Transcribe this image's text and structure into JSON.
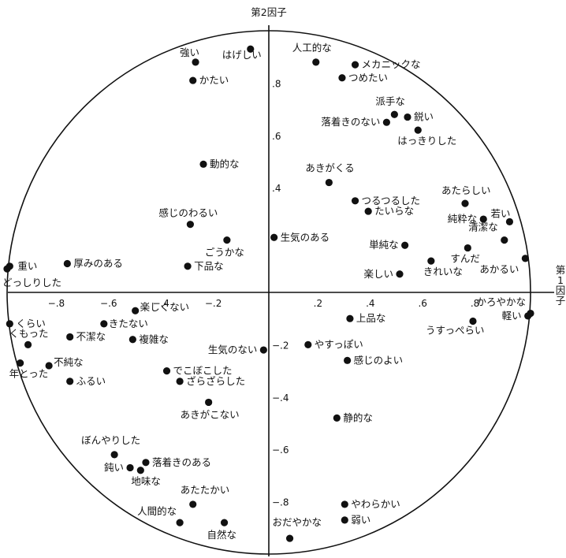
{
  "chart_data": {
    "type": "scatter",
    "title": "",
    "xlabel": "第1因子",
    "ylabel": "第2因子",
    "x_label_lines": [
      "第",
      "1",
      "因",
      "子"
    ],
    "xlim": [
      -1,
      1
    ],
    "ylim": [
      -1,
      1
    ],
    "grid": false,
    "unit_circle": true,
    "x_ticks": [
      {
        "v": -0.8,
        "label": "−.8"
      },
      {
        "v": -0.6,
        "label": "−.6"
      },
      {
        "v": -0.4,
        "label": "−.4"
      },
      {
        "v": -0.2,
        "label": "−.2"
      },
      {
        "v": 0.2,
        "label": ".2"
      },
      {
        "v": 0.4,
        "label": ".4"
      },
      {
        "v": 0.6,
        "label": ".6"
      },
      {
        "v": 0.8,
        "label": ".8"
      }
    ],
    "y_ticks": [
      {
        "v": 0.8,
        "label": ".8"
      },
      {
        "v": 0.6,
        "label": ".6"
      },
      {
        "v": 0.4,
        "label": ".4"
      },
      {
        "v": -0.2,
        "label": "−.2"
      },
      {
        "v": -0.4,
        "label": "−.4"
      },
      {
        "v": -0.6,
        "label": "−.6"
      },
      {
        "v": -0.8,
        "label": "−.8"
      }
    ],
    "points": [
      {
        "label": "強い",
        "x": -0.28,
        "y": 0.88
      },
      {
        "label": "はげしい",
        "x": -0.07,
        "y": 0.93
      },
      {
        "label": "かたい",
        "x": -0.29,
        "y": 0.81
      },
      {
        "label": "人工的な",
        "x": 0.18,
        "y": 0.88
      },
      {
        "label": "メカニックな",
        "x": 0.33,
        "y": 0.87
      },
      {
        "label": "つめたい",
        "x": 0.28,
        "y": 0.82
      },
      {
        "label": "派手な",
        "x": 0.48,
        "y": 0.68
      },
      {
        "label": "鋭い",
        "x": 0.53,
        "y": 0.67
      },
      {
        "label": "落着きのない",
        "x": 0.45,
        "y": 0.65
      },
      {
        "label": "はっきりした",
        "x": 0.57,
        "y": 0.62
      },
      {
        "label": "動的な",
        "x": -0.25,
        "y": 0.49
      },
      {
        "label": "あきがくる",
        "x": 0.23,
        "y": 0.42
      },
      {
        "label": "つるつるした",
        "x": 0.33,
        "y": 0.35
      },
      {
        "label": "あたらしい",
        "x": 0.75,
        "y": 0.34
      },
      {
        "label": "たいらな",
        "x": 0.38,
        "y": 0.31
      },
      {
        "label": "純粋な",
        "x": 0.82,
        "y": 0.28
      },
      {
        "label": "若い",
        "x": 0.92,
        "y": 0.27
      },
      {
        "label": "感じのわるい",
        "x": -0.3,
        "y": 0.26
      },
      {
        "label": "生気のある",
        "x": 0.02,
        "y": 0.21
      },
      {
        "label": "ごうかな",
        "x": -0.16,
        "y": 0.2
      },
      {
        "label": "清潔な",
        "x": 0.9,
        "y": 0.2
      },
      {
        "label": "単純な",
        "x": 0.52,
        "y": 0.18
      },
      {
        "label": "すんだ",
        "x": 0.76,
        "y": 0.17
      },
      {
        "label": "重い",
        "x": -0.99,
        "y": 0.1
      },
      {
        "label": "厚みのある",
        "x": -0.77,
        "y": 0.11
      },
      {
        "label": "下品な",
        "x": -0.31,
        "y": 0.1
      },
      {
        "label": "きれいな",
        "x": 0.62,
        "y": 0.12
      },
      {
        "label": "あかるい",
        "x": 0.98,
        "y": 0.13
      },
      {
        "label": "どっしりした",
        "x": -1.0,
        "y": 0.09
      },
      {
        "label": "楽しい",
        "x": 0.5,
        "y": 0.07
      },
      {
        "label": "かろやかな",
        "x": 1.0,
        "y": -0.08
      },
      {
        "label": "軽い",
        "x": 0.99,
        "y": -0.09
      },
      {
        "label": "うすっぺらい",
        "x": 0.78,
        "y": -0.11
      },
      {
        "label": "上品な",
        "x": 0.31,
        "y": -0.1
      },
      {
        "label": "楽しくない",
        "x": -0.51,
        "y": -0.07
      },
      {
        "label": "くらい",
        "x": -0.99,
        "y": -0.12
      },
      {
        "label": "きたない",
        "x": -0.63,
        "y": -0.12
      },
      {
        "label": "くもった",
        "x": -0.92,
        "y": -0.2
      },
      {
        "label": "不潔な",
        "x": -0.76,
        "y": -0.17
      },
      {
        "label": "複雑な",
        "x": -0.52,
        "y": -0.18
      },
      {
        "label": "生気のない",
        "x": -0.02,
        "y": -0.22
      },
      {
        "label": "やすっぽい",
        "x": 0.15,
        "y": -0.2
      },
      {
        "label": "感じのよい",
        "x": 0.3,
        "y": -0.26
      },
      {
        "label": "不純な",
        "x": -0.84,
        "y": -0.28
      },
      {
        "label": "年とった",
        "x": -0.95,
        "y": -0.27
      },
      {
        "label": "でこぼこした",
        "x": -0.39,
        "y": -0.3
      },
      {
        "label": "ふるい",
        "x": -0.76,
        "y": -0.34
      },
      {
        "label": "ざらざらした",
        "x": -0.34,
        "y": -0.34
      },
      {
        "label": "あきがこない",
        "x": -0.23,
        "y": -0.42
      },
      {
        "label": "静的な",
        "x": 0.26,
        "y": -0.48
      },
      {
        "label": "ぼんやりした",
        "x": -0.59,
        "y": -0.62
      },
      {
        "label": "落着きのある",
        "x": -0.47,
        "y": -0.65
      },
      {
        "label": "鈍い",
        "x": -0.53,
        "y": -0.67
      },
      {
        "label": "地味な",
        "x": -0.49,
        "y": -0.68
      },
      {
        "label": "あたたかい",
        "x": -0.29,
        "y": -0.81
      },
      {
        "label": "やわらかい",
        "x": 0.29,
        "y": -0.81
      },
      {
        "label": "人間的な",
        "x": -0.34,
        "y": -0.88
      },
      {
        "label": "自然な",
        "x": -0.17,
        "y": -0.88
      },
      {
        "label": "弱い",
        "x": 0.29,
        "y": -0.87
      },
      {
        "label": "おだやかな",
        "x": 0.08,
        "y": -0.94
      }
    ]
  }
}
